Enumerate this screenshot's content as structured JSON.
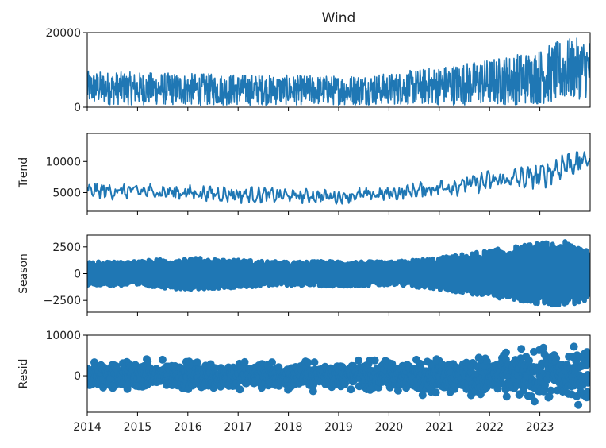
{
  "chart_data": {
    "type": "line",
    "title": "Wind",
    "xlabel": "",
    "x_ticks": [
      "2014",
      "2015",
      "2016",
      "2017",
      "2018",
      "2019",
      "2020",
      "2021",
      "2022",
      "2023"
    ],
    "x_range": [
      2014.0,
      2024.0
    ],
    "series_color": "#1f77b4",
    "grid": false,
    "legend": "none",
    "panels": [
      {
        "id": "observed",
        "ylabel": "",
        "ylim": [
          0,
          20000
        ],
        "yticks": [
          0,
          20000
        ],
        "ytick_labels": [
          "0",
          "20000"
        ],
        "style": "line",
        "year_series": {
          "x": [
            2014,
            2015,
            2016,
            2017,
            2018,
            2019,
            2020,
            2021,
            2022,
            2023,
            2023.5,
            2023.95
          ],
          "mean": [
            5200,
            5000,
            4800,
            4700,
            4600,
            4500,
            4900,
            5800,
            6800,
            8200,
            10000,
            10500
          ],
          "amplitude": [
            4500,
            4400,
            4300,
            4200,
            4000,
            4000,
            4200,
            5200,
            6200,
            7500,
            8500,
            8000
          ]
        }
      },
      {
        "id": "trend",
        "ylabel": "Trend",
        "ylim": [
          2000,
          14500
        ],
        "yticks": [
          5000,
          10000
        ],
        "ytick_labels": [
          "5000",
          "10000"
        ],
        "style": "line",
        "year_series": {
          "x": [
            2014,
            2015,
            2016,
            2017,
            2018,
            2019,
            2020,
            2021,
            2022,
            2023,
            2023.5,
            2023.95
          ],
          "mean": [
            5300,
            5200,
            5000,
            4700,
            4500,
            4400,
            4800,
            5800,
            6800,
            7600,
            9500,
            10200
          ],
          "amplitude": [
            1800,
            2000,
            1800,
            2000,
            1800,
            1700,
            1700,
            2200,
            2600,
            3000,
            3800,
            2500
          ]
        }
      },
      {
        "id": "season",
        "ylabel": "Season",
        "ylim": [
          -3600,
          3600
        ],
        "yticks": [
          -2500,
          0,
          2500
        ],
        "ytick_labels": [
          "−2500",
          "0",
          "2500"
        ],
        "style": "band",
        "year_series": {
          "x": [
            2014,
            2015,
            2016,
            2017,
            2018,
            2019,
            2020,
            2021,
            2022,
            2023,
            2023.5,
            2023.95
          ],
          "mean": [
            0,
            0,
            0,
            0,
            0,
            0,
            0,
            0,
            0,
            0,
            0,
            0
          ],
          "amplitude": [
            1100,
            1200,
            1500,
            1300,
            1100,
            1200,
            1100,
            1500,
            2200,
            2900,
            3000,
            2600
          ]
        }
      },
      {
        "id": "resid",
        "ylabel": "Resid",
        "ylim": [
          -9000,
          10000
        ],
        "yticks": [
          0,
          10000
        ],
        "ytick_labels": [
          "0",
          "10000"
        ],
        "style": "scatter",
        "year_series": {
          "x": [
            2014,
            2015,
            2016,
            2017,
            2018,
            2019,
            2020,
            2021,
            2022,
            2023,
            2023.5,
            2023.95
          ],
          "mean": [
            0,
            0,
            0,
            0,
            0,
            0,
            0,
            0,
            0,
            0,
            0,
            0
          ],
          "amplitude": [
            4500,
            4300,
            4200,
            4300,
            4000,
            4000,
            4500,
            5200,
            6000,
            7500,
            8500,
            8000
          ]
        }
      }
    ]
  }
}
